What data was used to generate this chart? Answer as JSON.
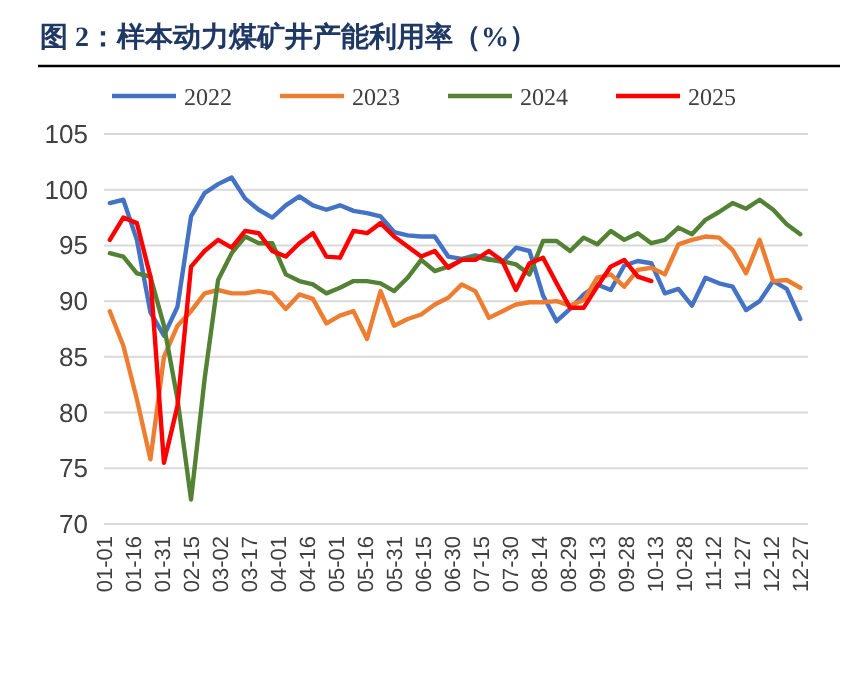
{
  "chart_data": {
    "type": "line",
    "title": "图 2：样本动力煤矿井产能利用率（%）",
    "x": [
      "--01-04",
      "--01-11",
      "--01-18",
      "--01-25",
      "--02-01",
      "--02-08",
      "--02-15",
      "--02-22",
      "--03-01",
      "--03-08",
      "--03-15",
      "--03-22",
      "--03-29",
      "--04-05",
      "--04-12",
      "--04-19",
      "--04-26",
      "--05-03",
      "--05-10",
      "--05-17",
      "--05-24",
      "--05-31",
      "--06-07",
      "--06-14",
      "--06-21",
      "--06-28",
      "--07-05",
      "--07-12",
      "--07-19",
      "--07-26",
      "--08-02",
      "--08-09",
      "--08-16",
      "--08-23",
      "--08-30",
      "--09-06",
      "--09-13",
      "--09-20",
      "--09-27",
      "--10-04",
      "--10-11",
      "--10-18",
      "--10-25",
      "--11-01",
      "--11-08",
      "--11-15",
      "--11-22",
      "--11-29",
      "--12-06",
      "--12-13",
      "--12-20",
      "--12-27"
    ],
    "xlim": [
      "--01-01",
      "--12-31"
    ],
    "xticks": [
      {
        "value": "--01-01",
        "label": "01-01"
      },
      {
        "value": "--01-16",
        "label": "01-16"
      },
      {
        "value": "--01-31",
        "label": "01-31"
      },
      {
        "value": "--02-15",
        "label": "02-15"
      },
      {
        "value": "--03-02",
        "label": "03-02"
      },
      {
        "value": "--03-17",
        "label": "03-17"
      },
      {
        "value": "--04-01",
        "label": "04-01"
      },
      {
        "value": "--04-16",
        "label": "04-16"
      },
      {
        "value": "--05-01",
        "label": "05-01"
      },
      {
        "value": "--05-16",
        "label": "05-16"
      },
      {
        "value": "--05-31",
        "label": "05-31"
      },
      {
        "value": "--06-15",
        "label": "06-15"
      },
      {
        "value": "--06-30",
        "label": "06-30"
      },
      {
        "value": "--07-15",
        "label": "07-15"
      },
      {
        "value": "--07-30",
        "label": "07-30"
      },
      {
        "value": "--08-14",
        "label": "08-14"
      },
      {
        "value": "--08-29",
        "label": "08-29"
      },
      {
        "value": "--09-13",
        "label": "09-13"
      },
      {
        "value": "--09-28",
        "label": "09-28"
      },
      {
        "value": "--10-13",
        "label": "10-13"
      },
      {
        "value": "--10-28",
        "label": "10-28"
      },
      {
        "value": "--11-12",
        "label": "11-12"
      },
      {
        "value": "--11-27",
        "label": "11-27"
      },
      {
        "value": "--12-12",
        "label": "12-12"
      },
      {
        "value": "--12-27",
        "label": "12-27"
      }
    ],
    "ylim": [
      70,
      105
    ],
    "yticks": [
      70,
      75,
      80,
      85,
      90,
      95,
      100,
      105
    ],
    "grid": "y",
    "legend": "top",
    "series": [
      {
        "name": "2022",
        "color": "#4472c4",
        "values": [
          98.8,
          99.1,
          95.5,
          89,
          86.9,
          89.5,
          97.6,
          99.7,
          100.5,
          101.1,
          99.2,
          98.2,
          97.5,
          98.6,
          99.4,
          98.6,
          98.2,
          98.6,
          98.1,
          97.9,
          97.6,
          96.2,
          95.9,
          95.8,
          95.8,
          94.0,
          93.8,
          94.1,
          93.8,
          93.5,
          94.8,
          94.5,
          90.5,
          88.2,
          89.3,
          90.6,
          91.5,
          91.0,
          93.2,
          93.6,
          93.4,
          90.7,
          91.1,
          89.6,
          92.1,
          91.6,
          91.3,
          89.2,
          90.0,
          91.8,
          91.1,
          88.4
        ]
      },
      {
        "name": "2023",
        "color": "#ed7d31",
        "values": [
          89.1,
          86.0,
          81.2,
          75.8,
          85.0,
          87.8,
          89.1,
          90.7,
          91.0,
          90.7,
          90.7,
          90.9,
          90.7,
          89.3,
          90.6,
          90.2,
          88.0,
          88.7,
          89.1,
          86.6,
          90.9,
          87.8,
          88.4,
          88.8,
          89.7,
          90.3,
          91.5,
          90.9,
          88.5,
          89.1,
          89.7,
          89.9,
          89.9,
          90.0,
          89.6,
          90.1,
          92.1,
          92.4,
          91.3,
          92.8,
          93.0,
          92.4,
          95.1,
          95.5,
          95.8,
          95.7,
          94.6,
          92.5,
          95.5,
          91.8,
          91.9,
          91.2
        ]
      },
      {
        "name": "2024",
        "color": "#548235",
        "values": [
          94.3,
          94.0,
          92.5,
          92.2,
          87.8,
          81.2,
          72.2,
          83.0,
          91.9,
          94.3,
          95.8,
          95.2,
          95.2,
          92.4,
          91.8,
          91.5,
          90.7,
          91.2,
          91.8,
          91.8,
          91.6,
          90.9,
          92.1,
          93.7,
          92.7,
          93.1,
          93.7,
          94.0,
          93.7,
          93.6,
          93.3,
          92.4,
          95.4,
          95.4,
          94.5,
          95.7,
          95.1,
          96.3,
          95.5,
          96.1,
          95.2,
          95.5,
          96.6,
          96.0,
          97.3,
          98.0,
          98.8,
          98.3,
          99.1,
          98.2,
          96.9,
          96.0
        ]
      },
      {
        "name": "2025",
        "color": "#ff0000",
        "values": [
          95.5,
          97.5,
          97.0,
          92.2,
          75.5,
          80.6,
          93.1,
          94.5,
          95.5,
          94.8,
          96.3,
          96.1,
          94.5,
          94.0,
          95.2,
          96.1,
          94.0,
          93.9,
          96.3,
          96.1,
          97.0,
          95.8,
          94.9,
          94.0,
          94.5,
          93.0,
          93.7,
          93.7,
          94.5,
          93.6,
          91.0,
          93.4,
          93.9,
          91.6,
          89.4,
          89.4,
          91.3,
          93.1,
          93.7,
          92.2,
          91.8,
          null,
          null,
          null,
          null,
          null,
          null,
          null,
          null,
          null,
          null,
          null
        ]
      }
    ]
  }
}
